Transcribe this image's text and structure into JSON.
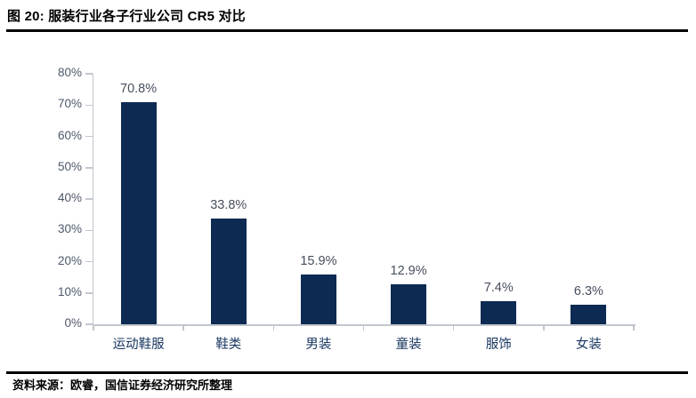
{
  "page": {
    "title": "图 20: 服装行业各子行业公司 CR5 对比",
    "source": "资料来源：欧睿，国信证券经济研究所整理"
  },
  "colors": {
    "bar": "#0C2A52",
    "axis_line": "#C2C6CE",
    "axis_text": "#4D586B",
    "data_label": "#474F5E",
    "category_text": "#16355E",
    "rule": "#000000"
  },
  "chart_data": {
    "type": "bar",
    "title": "服装行业各子行业公司 CR5 对比",
    "categories": [
      "运动鞋服",
      "鞋类",
      "男装",
      "童装",
      "服饰",
      "女装"
    ],
    "values": [
      70.8,
      33.8,
      15.9,
      12.9,
      7.4,
      6.3
    ],
    "value_labels": [
      "70.8%",
      "33.8%",
      "15.9%",
      "12.9%",
      "7.4%",
      "6.3%"
    ],
    "xlabel": "",
    "ylabel": "",
    "ylim": [
      0,
      80
    ],
    "ytick_step": 10,
    "ytick_labels": [
      "0%",
      "10%",
      "20%",
      "30%",
      "40%",
      "50%",
      "60%",
      "70%",
      "80%"
    ],
    "grid": false,
    "legend": "none",
    "unit": "percent"
  }
}
